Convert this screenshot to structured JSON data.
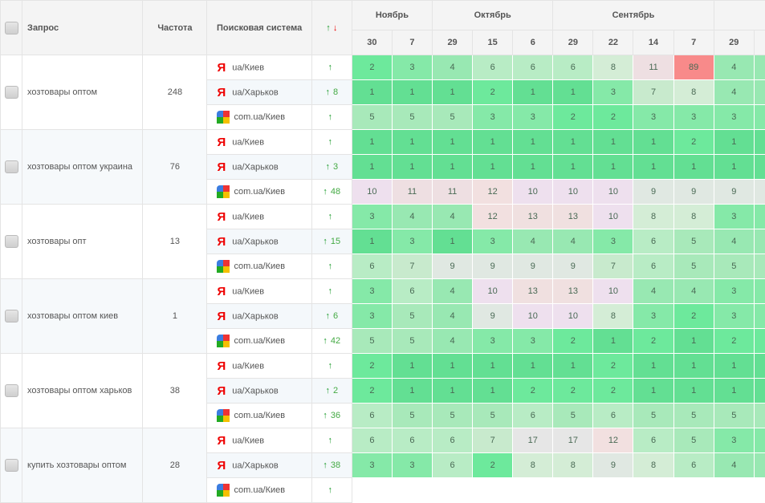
{
  "header": {
    "query": "Запрос",
    "freq": "Частота",
    "engine": "Поисковая система",
    "change_up": "↑",
    "change_down": "↓",
    "months": [
      {
        "label": "Ноябрь",
        "span": 2
      },
      {
        "label": "Октябрь",
        "span": 3
      },
      {
        "label": "Сентябрь",
        "span": 4
      },
      {
        "label": "",
        "span": 2
      }
    ],
    "dates": [
      "30",
      "7",
      "29",
      "15",
      "6",
      "29",
      "22",
      "14",
      "7",
      "29",
      ""
    ]
  },
  "groups": [
    {
      "query": "хозтовары оптом",
      "freq": "248",
      "rows": [
        {
          "engine": "yandex",
          "region": "ua/Киев",
          "change": "",
          "values": [
            2,
            3,
            4,
            6,
            6,
            6,
            8,
            11,
            89,
            4
          ]
        },
        {
          "engine": "yandex",
          "region": "ua/Харьков",
          "change": "8",
          "values": [
            1,
            1,
            1,
            2,
            1,
            1,
            3,
            7,
            8,
            4
          ]
        },
        {
          "engine": "google",
          "region": "com.ua/Киев",
          "change": "",
          "values": [
            5,
            5,
            5,
            3,
            3,
            2,
            2,
            3,
            3,
            3
          ]
        }
      ]
    },
    {
      "query": "хозтовары оптом украина",
      "freq": "76",
      "rows": [
        {
          "engine": "yandex",
          "region": "ua/Киев",
          "change": "",
          "values": [
            1,
            1,
            1,
            1,
            1,
            1,
            1,
            1,
            2,
            1
          ]
        },
        {
          "engine": "yandex",
          "region": "ua/Харьков",
          "change": "3",
          "values": [
            1,
            1,
            1,
            1,
            1,
            1,
            1,
            1,
            1,
            1
          ]
        },
        {
          "engine": "google",
          "region": "com.ua/Киев",
          "change": "48",
          "values": [
            10,
            11,
            11,
            12,
            10,
            10,
            10,
            9,
            9,
            9
          ]
        }
      ]
    },
    {
      "query": "хозтовары опт",
      "freq": "13",
      "rows": [
        {
          "engine": "yandex",
          "region": "ua/Киев",
          "change": "",
          "values": [
            3,
            4,
            4,
            12,
            13,
            13,
            10,
            8,
            8,
            3
          ]
        },
        {
          "engine": "yandex",
          "region": "ua/Харьков",
          "change": "15",
          "values": [
            1,
            3,
            1,
            3,
            4,
            4,
            3,
            6,
            5,
            4
          ]
        },
        {
          "engine": "google",
          "region": "com.ua/Киев",
          "change": "",
          "values": [
            6,
            7,
            9,
            9,
            9,
            9,
            7,
            6,
            5,
            5
          ]
        }
      ]
    },
    {
      "query": "хозтовары оптом киев",
      "freq": "1",
      "rows": [
        {
          "engine": "yandex",
          "region": "ua/Киев",
          "change": "",
          "values": [
            3,
            6,
            4,
            10,
            13,
            13,
            10,
            4,
            4,
            3
          ]
        },
        {
          "engine": "yandex",
          "region": "ua/Харьков",
          "change": "6",
          "values": [
            3,
            5,
            4,
            9,
            10,
            10,
            8,
            3,
            2,
            3
          ]
        },
        {
          "engine": "google",
          "region": "com.ua/Киев",
          "change": "42",
          "values": [
            5,
            5,
            4,
            3,
            3,
            2,
            1,
            2,
            1,
            2
          ]
        }
      ]
    },
    {
      "query": "хозтовары оптом харьков",
      "freq": "38",
      "rows": [
        {
          "engine": "yandex",
          "region": "ua/Киев",
          "change": "",
          "values": [
            2,
            1,
            1,
            1,
            1,
            1,
            2,
            1,
            1,
            1
          ]
        },
        {
          "engine": "yandex",
          "region": "ua/Харьков",
          "change": "2",
          "values": [
            2,
            1,
            1,
            1,
            2,
            2,
            2,
            1,
            1,
            1
          ]
        },
        {
          "engine": "google",
          "region": "com.ua/Киев",
          "change": "36",
          "values": [
            6,
            5,
            5,
            5,
            6,
            5,
            6,
            5,
            5,
            5
          ]
        }
      ]
    },
    {
      "query": "купить хозтовары оптом",
      "freq": "28",
      "rows": [
        {
          "engine": "yandex",
          "region": "ua/Киев",
          "change": "",
          "values": [
            6,
            6,
            6,
            7,
            17,
            17,
            12,
            6,
            5,
            3
          ]
        },
        {
          "engine": "yandex",
          "region": "ua/Харьков",
          "change": "38",
          "values": [
            3,
            3,
            6,
            2,
            8,
            8,
            9,
            8,
            6,
            4
          ]
        },
        {
          "engine": "google",
          "region": "com.ua/Киев",
          "change": "",
          "values": []
        }
      ]
    }
  ],
  "colors": {
    "up": "#1a9a2a",
    "down": "#e00000",
    "best": "#5fe08f",
    "worst": "#f88888"
  }
}
